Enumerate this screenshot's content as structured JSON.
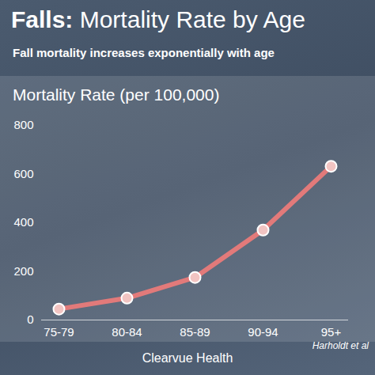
{
  "chart_data": {
    "type": "line",
    "title": "Falls: Mortality Rate by Age",
    "subtitle": "Fall mortality increases exponentially with age",
    "y_label": "Mortality Rate (per 100,000)",
    "categories": [
      "75-79",
      "80-84",
      "85-89",
      "90-94",
      "95+"
    ],
    "values": [
      45,
      90,
      175,
      370,
      632
    ],
    "color": "#e27a7a",
    "marker": "circle",
    "ylim": [
      0,
      800
    ],
    "yticks": [
      0,
      200,
      400,
      600,
      800
    ],
    "grid": false,
    "source": "Harholdt et al",
    "footer": "Clearvue Health"
  }
}
